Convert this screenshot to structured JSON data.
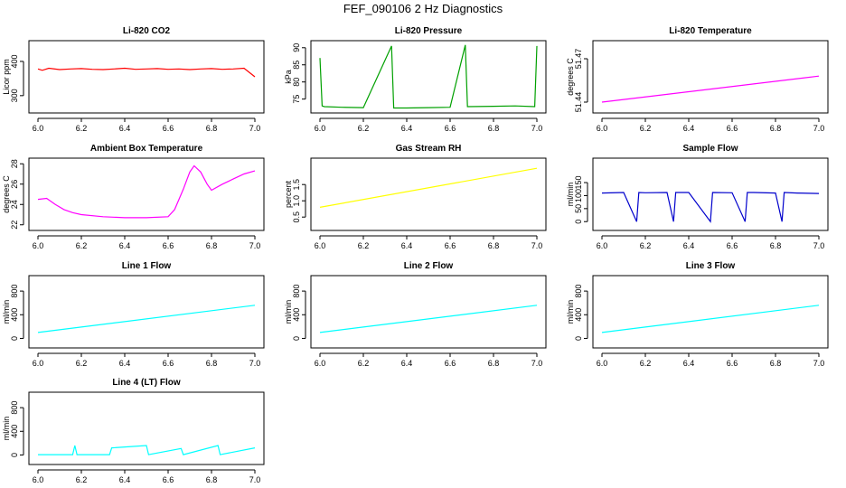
{
  "figure_title": "FEF_090106  2 Hz Diagnostics",
  "chart_data": [
    {
      "type": "line",
      "title": "Li-820 CO2",
      "ylabel": "Licor ppm",
      "color": "#ff0000",
      "xlim": [
        6.0,
        7.0
      ],
      "ylim": [
        260,
        450
      ],
      "xticks": [
        "6.0",
        "6.2",
        "6.4",
        "6.6",
        "6.8",
        "7.0"
      ],
      "yticks": [
        "300",
        "400"
      ],
      "series": [
        {
          "x": [
            6.0,
            6.02,
            6.05,
            6.1,
            6.15,
            6.2,
            6.25,
            6.3,
            6.35,
            6.4,
            6.45,
            6.5,
            6.55,
            6.6,
            6.65,
            6.7,
            6.75,
            6.8,
            6.85,
            6.9,
            6.95,
            7.0
          ],
          "y": [
            378,
            374,
            380,
            376,
            378,
            379,
            377,
            376,
            378,
            380,
            377,
            378,
            379,
            377,
            378,
            376,
            378,
            379,
            377,
            378,
            380,
            355
          ]
        }
      ]
    },
    {
      "type": "line",
      "title": "Li-820 Pressure",
      "ylabel": "kPa",
      "color": "#00a000",
      "xlim": [
        6.0,
        7.0
      ],
      "ylim": [
        72,
        91
      ],
      "xticks": [
        "6.0",
        "6.2",
        "6.4",
        "6.6",
        "6.8",
        "7.0"
      ],
      "yticks": [
        "75",
        "80",
        "85",
        "90"
      ],
      "series": [
        {
          "x": [
            6.0,
            6.01,
            6.02,
            6.1,
            6.2,
            6.33,
            6.34,
            6.4,
            6.5,
            6.6,
            6.67,
            6.68,
            6.8,
            6.9,
            6.99,
            7.0
          ],
          "y": [
            87,
            73,
            72.8,
            72.6,
            72.5,
            90.5,
            72.4,
            72.4,
            72.5,
            72.6,
            90.8,
            72.8,
            72.9,
            73,
            72.8,
            90.5
          ]
        }
      ]
    },
    {
      "type": "line",
      "title": "Li-820 Temperature",
      "ylabel": "degrees C",
      "color": "#ff00ff",
      "xlim": [
        6.0,
        7.0
      ],
      "ylim": [
        51.435,
        51.48
      ],
      "xticks": [
        "6.0",
        "6.2",
        "6.4",
        "6.6",
        "6.8",
        "7.0"
      ],
      "yticks": [
        "51.44",
        "51.47"
      ],
      "series": [
        {
          "x": [
            6.0,
            7.0
          ],
          "y": [
            51.44,
            51.458
          ]
        }
      ]
    },
    {
      "type": "line",
      "title": "Ambient Box Temperature",
      "ylabel": "degrees C",
      "color": "#ff00ff",
      "xlim": [
        6.0,
        7.0
      ],
      "ylim": [
        21.8,
        28.2
      ],
      "xticks": [
        "6.0",
        "6.2",
        "6.4",
        "6.6",
        "6.8",
        "7.0"
      ],
      "yticks": [
        "22",
        "24",
        "26",
        "28"
      ],
      "series": [
        {
          "x": [
            6.0,
            6.04,
            6.08,
            6.12,
            6.16,
            6.2,
            6.3,
            6.4,
            6.5,
            6.6,
            6.63,
            6.67,
            6.7,
            6.72,
            6.75,
            6.78,
            6.8,
            6.85,
            6.9,
            6.95,
            7.0
          ],
          "y": [
            24.5,
            24.6,
            24,
            23.5,
            23.2,
            23,
            22.8,
            22.7,
            22.7,
            22.8,
            23.5,
            25.5,
            27.2,
            27.8,
            27.2,
            26,
            25.4,
            26,
            26.5,
            27,
            27.3
          ]
        }
      ]
    },
    {
      "type": "line",
      "title": "Gas Stream RH",
      "ylabel": "percent",
      "color": "#ffff00",
      "xlim": [
        6.0,
        7.0
      ],
      "ylim": [
        0.2,
        2.2
      ],
      "xticks": [
        "6.0",
        "6.2",
        "6.4",
        "6.6",
        "6.8",
        "7.0"
      ],
      "yticks": [
        "0.5",
        "1.0",
        "1.5"
      ],
      "series": [
        {
          "x": [
            6.0,
            7.0
          ],
          "y": [
            0.8,
            2.0
          ]
        }
      ]
    },
    {
      "type": "line",
      "title": "Sample Flow",
      "ylabel": "ml/min",
      "color": "#0000cc",
      "xlim": [
        6.0,
        7.0
      ],
      "ylim": [
        -20,
        230
      ],
      "xticks": [
        "6.0",
        "6.2",
        "6.4",
        "6.6",
        "6.8",
        "7.0"
      ],
      "yticks": [
        "0",
        "50",
        "100",
        "150"
      ],
      "series": [
        {
          "x": [
            6.0,
            6.1,
            6.16,
            6.17,
            6.2,
            6.3,
            6.33,
            6.34,
            6.4,
            6.5,
            6.51,
            6.6,
            6.66,
            6.67,
            6.7,
            6.8,
            6.83,
            6.84,
            6.9,
            7.0
          ],
          "y": [
            110,
            112,
            0,
            112,
            111,
            112,
            0,
            112,
            112,
            0,
            112,
            111,
            0,
            112,
            112,
            110,
            0,
            112,
            110,
            108
          ]
        }
      ]
    },
    {
      "type": "line",
      "title": "Line 1 Flow",
      "ylabel": "ml/min",
      "color": "#00ffff",
      "xlim": [
        6.0,
        7.0
      ],
      "ylim": [
        -100,
        1000
      ],
      "xticks": [
        "6.0",
        "6.2",
        "6.4",
        "6.6",
        "6.8",
        "7.0"
      ],
      "yticks": [
        "0",
        "400",
        "800"
      ],
      "series": [
        {
          "x": [
            6.0,
            7.0
          ],
          "y": [
            100,
            560
          ]
        }
      ]
    },
    {
      "type": "line",
      "title": "Line 2 Flow",
      "ylabel": "ml/min",
      "color": "#00ffff",
      "xlim": [
        6.0,
        7.0
      ],
      "ylim": [
        -100,
        1000
      ],
      "xticks": [
        "6.0",
        "6.2",
        "6.4",
        "6.6",
        "6.8",
        "7.0"
      ],
      "yticks": [
        "0",
        "400",
        "800"
      ],
      "series": [
        {
          "x": [
            6.0,
            7.0
          ],
          "y": [
            100,
            560
          ]
        }
      ]
    },
    {
      "type": "line",
      "title": "Line 3 Flow",
      "ylabel": "ml/min",
      "color": "#00ffff",
      "xlim": [
        6.0,
        7.0
      ],
      "ylim": [
        -100,
        1000
      ],
      "xticks": [
        "6.0",
        "6.2",
        "6.4",
        "6.6",
        "6.8",
        "7.0"
      ],
      "yticks": [
        "0",
        "400",
        "800"
      ],
      "series": [
        {
          "x": [
            6.0,
            7.0
          ],
          "y": [
            100,
            560
          ]
        }
      ]
    },
    {
      "type": "line",
      "title": "Line 4 (LT) Flow",
      "ylabel": "ml/min",
      "color": "#00ffff",
      "xlim": [
        6.0,
        7.0
      ],
      "ylim": [
        -100,
        1000
      ],
      "xticks": [
        "6.0",
        "6.2",
        "6.4",
        "6.6",
        "6.8",
        "7.0"
      ],
      "yticks": [
        "0",
        "400",
        "800"
      ],
      "series": [
        {
          "x": [
            6.0,
            6.16,
            6.17,
            6.18,
            6.33,
            6.34,
            6.5,
            6.51,
            6.66,
            6.67,
            6.83,
            6.84,
            7.0
          ],
          "y": [
            5,
            5,
            160,
            5,
            5,
            120,
            160,
            5,
            110,
            5,
            160,
            5,
            120
          ]
        }
      ]
    }
  ]
}
